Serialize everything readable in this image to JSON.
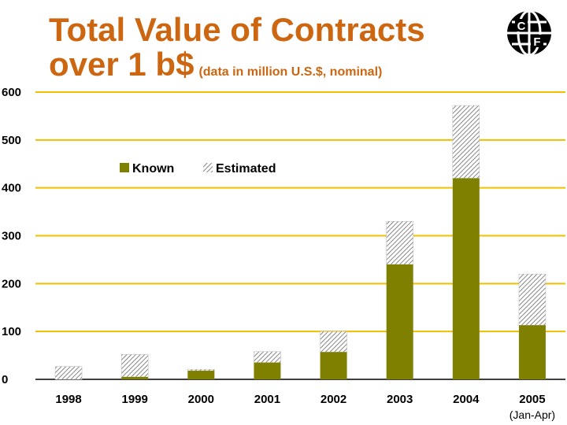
{
  "colors": {
    "title": "#cc6611",
    "known": "#808000",
    "gridline": "#f0c000",
    "estimated_hatch": "#999999"
  },
  "logo": {
    "icon": "cf-globe-logo",
    "letters": "CF"
  },
  "chart_data": {
    "type": "bar",
    "stacked": true,
    "title": "Total Value of Contracts over 1 b$",
    "title_line1": "Total Value of Contracts",
    "title_line2": "over 1 b$",
    "subtitle": "(data in million U.S.$, nominal)",
    "xlabel": "",
    "ylabel": "",
    "ylim": [
      0,
      600
    ],
    "yticks": [
      0,
      100,
      200,
      300,
      400,
      500,
      600
    ],
    "grid": true,
    "legend_position": "top-left",
    "categories": [
      "1998",
      "1999",
      "2000",
      "2001",
      "2002",
      "2003",
      "2004",
      "2005"
    ],
    "category_notes": [
      "",
      "",
      "",
      "",
      "",
      "",
      "",
      "(Jan-Apr)"
    ],
    "series": [
      {
        "name": "Known",
        "values": [
          0,
          5,
          18,
          35,
          57,
          240,
          420,
          113
        ]
      },
      {
        "name": "Estimated",
        "values": [
          27,
          47,
          3,
          23,
          43,
          90,
          152,
          107
        ]
      }
    ]
  }
}
